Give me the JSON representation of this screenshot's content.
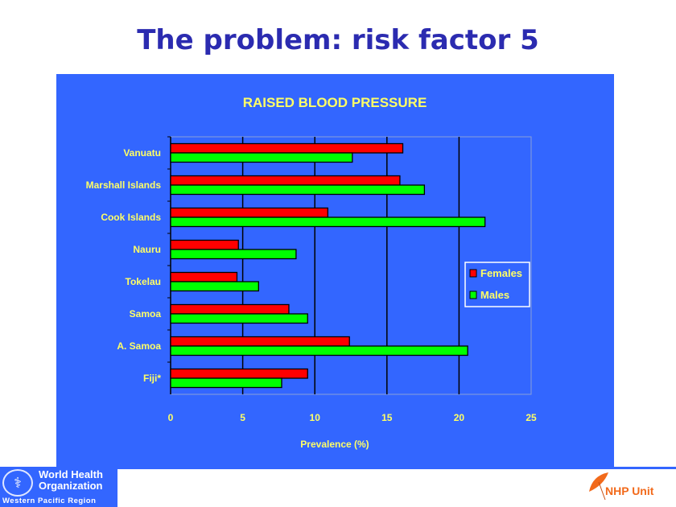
{
  "slide_title": "The problem: risk factor 5",
  "footer": {
    "who_name": "World Health Organization",
    "who_region": "Western Pacific Region",
    "unit_label": "NHP Unit"
  },
  "colors": {
    "panel": "#3366ff",
    "females": "#ff0000",
    "males": "#00ff00",
    "text": "#ffff66",
    "title": "#2b2bb0"
  },
  "chart_data": {
    "type": "bar",
    "orientation": "horizontal",
    "title": "RAISED BLOOD PRESSURE",
    "xlabel": "Prevalence (%)",
    "ylabel": "",
    "xlim": [
      0,
      25
    ],
    "xticks": [
      "0",
      "5",
      "10",
      "15",
      "20",
      "25"
    ],
    "grid": true,
    "legend_position": "right",
    "categories": [
      "Vanuatu",
      "Marshall Islands",
      "Cook Islands",
      "Nauru",
      "Tokelau",
      "Samoa",
      "A. Samoa",
      "Fiji*"
    ],
    "series": [
      {
        "name": "Females",
        "color": "#ff0000",
        "values": [
          16.1,
          15.9,
          10.9,
          4.7,
          4.6,
          8.2,
          12.4,
          9.5
        ]
      },
      {
        "name": "Males",
        "color": "#00ff00",
        "values": [
          12.6,
          17.6,
          21.8,
          8.7,
          6.1,
          9.5,
          20.6,
          7.7
        ]
      }
    ]
  }
}
